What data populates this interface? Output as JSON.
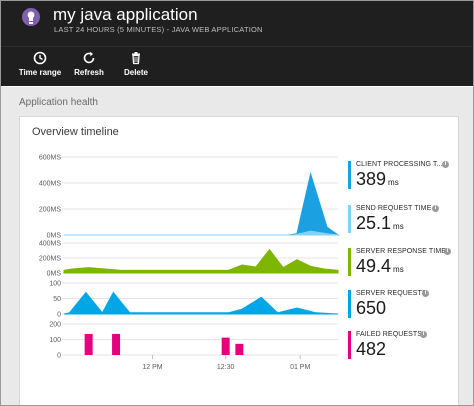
{
  "header": {
    "title": "my java application",
    "subtitle": "LAST 24 HOURS (5 MINUTES) - JAVA WEB APPLICATION"
  },
  "toolbar": {
    "time_range": {
      "label": "Time range",
      "icon": "clock-icon"
    },
    "refresh": {
      "label": "Refresh",
      "icon": "refresh-icon"
    },
    "delete": {
      "label": "Delete",
      "icon": "trash-icon"
    }
  },
  "section": {
    "title": "Application health"
  },
  "tile": {
    "title": "Overview timeline"
  },
  "colors": {
    "client_processing": "#1ba1e2",
    "send_request": "#7fd3f7",
    "server_response": "#7db500",
    "server_requests": "#00a6e6",
    "failed_requests": "#e6007e"
  },
  "chart_data": [
    {
      "type": "area",
      "name": "response-time",
      "yticks": [
        "600MS",
        "400MS",
        "200MS",
        "0MS"
      ],
      "ylim": [
        0,
        600
      ],
      "xlim": [
        0,
        100
      ],
      "series": [
        {
          "name": "CLIENT PROCESSING TIME",
          "color": "#1ba1e2",
          "x": [
            0,
            82,
            85,
            90,
            96,
            100
          ],
          "y": [
            0,
            0,
            10,
            470,
            60,
            0
          ]
        },
        {
          "name": "SEND REQUEST TIME",
          "color": "#7fd3f7",
          "x": [
            0,
            84,
            90,
            96,
            100
          ],
          "y": [
            0,
            0,
            30,
            10,
            0
          ]
        }
      ]
    },
    {
      "type": "area",
      "name": "server-response-time",
      "yticks": [
        "400MS",
        "200MS",
        "0MS"
      ],
      "ylim": [
        0,
        450
      ],
      "xlim": [
        0,
        100
      ],
      "series": [
        {
          "name": "SERVER RESPONSE TIME",
          "color": "#7db500",
          "x": [
            0,
            3,
            9,
            15,
            21,
            60,
            65,
            70,
            75,
            80,
            85,
            90,
            95,
            100
          ],
          "y": [
            40,
            60,
            80,
            60,
            40,
            40,
            120,
            90,
            350,
            80,
            200,
            100,
            60,
            40
          ]
        }
      ]
    },
    {
      "type": "area",
      "name": "server-requests",
      "yticks": [
        "100",
        "50",
        "0"
      ],
      "ylim": [
        0,
        130
      ],
      "xlim": [
        0,
        100
      ],
      "series": [
        {
          "name": "SERVER REQUESTS",
          "color": "#00a6e6",
          "x": [
            0,
            2,
            8,
            14,
            18,
            24,
            60,
            65,
            72,
            78,
            85,
            92,
            100
          ],
          "y": [
            0,
            5,
            90,
            5,
            90,
            5,
            5,
            20,
            70,
            5,
            25,
            5,
            0
          ]
        }
      ]
    },
    {
      "type": "bar",
      "name": "failed-requests",
      "yticks": [
        "200",
        "100",
        "0"
      ],
      "ylim": [
        0,
        250
      ],
      "xlim": [
        0,
        100
      ],
      "series": [
        {
          "name": "FAILED REQUESTS",
          "color": "#e6007e",
          "x": [
            9,
            19,
            59,
            64
          ],
          "y": [
            170,
            170,
            140,
            90
          ]
        }
      ]
    }
  ],
  "x_ticks": [
    "12 PM",
    "12:30",
    "01 PM"
  ],
  "metrics": [
    {
      "label": "CLIENT PROCESSING T...",
      "value": "389",
      "unit": "ms",
      "color": "#1ba1e2"
    },
    {
      "label": "SEND REQUEST TIME",
      "value": "25.1",
      "unit": "ms",
      "color": "#7fd3f7"
    },
    {
      "label": "SERVER RESPONSE TIME",
      "value": "49.4",
      "unit": "ms",
      "color": "#7db500"
    },
    {
      "label": "SERVER REQUESTS",
      "value": "650",
      "unit": "",
      "color": "#00a6e6"
    },
    {
      "label": "FAILED REQUESTS",
      "value": "482",
      "unit": "",
      "color": "#e6007e"
    }
  ]
}
